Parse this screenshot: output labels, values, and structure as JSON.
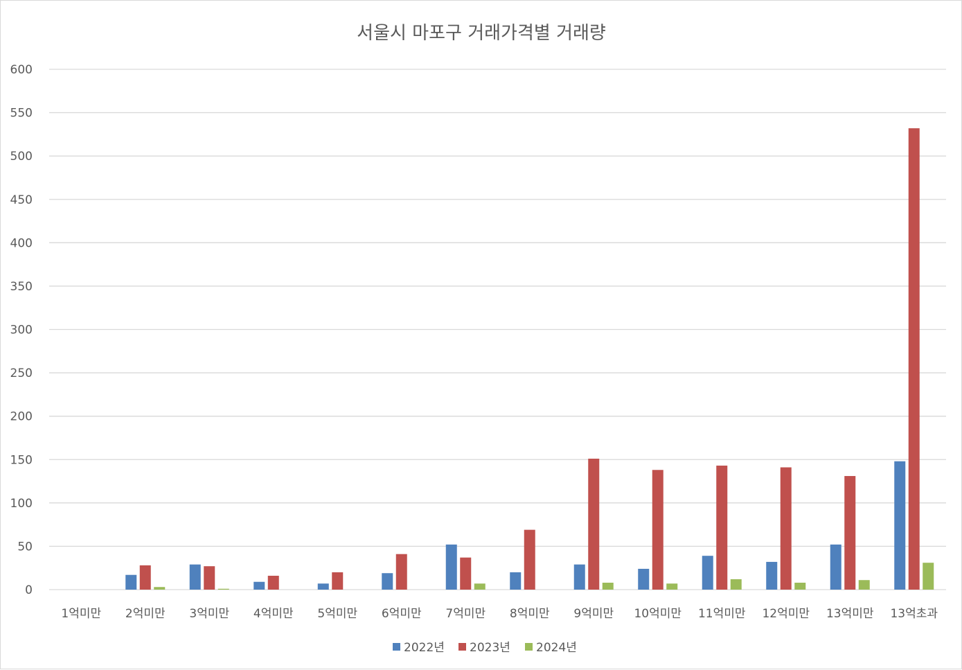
{
  "chart_data": {
    "type": "bar",
    "title": "서울시 마포구 거래가격별 거래량",
    "xlabel": "",
    "ylabel": "",
    "ylim": [
      0,
      600
    ],
    "yticks": [
      0,
      50,
      100,
      150,
      200,
      250,
      300,
      350,
      400,
      450,
      500,
      550,
      600
    ],
    "grid": true,
    "legend_position": "bottom",
    "categories": [
      "1억미만",
      "2억미만",
      "3억미만",
      "4억미만",
      "5억미만",
      "6억미만",
      "7억미만",
      "8억미만",
      "9억미만",
      "10억미만",
      "11억미만",
      "12억미만",
      "13억미만",
      "13억초과"
    ],
    "series": [
      {
        "name": "2022년",
        "color": "#4f81bd",
        "values": [
          0,
          17,
          29,
          9,
          7,
          19,
          52,
          20,
          29,
          24,
          39,
          32,
          52,
          148
        ]
      },
      {
        "name": "2023년",
        "color": "#c0504d",
        "values": [
          0,
          28,
          27,
          16,
          20,
          41,
          37,
          69,
          151,
          138,
          143,
          141,
          131,
          532
        ]
      },
      {
        "name": "2024년",
        "color": "#9bbb59",
        "values": [
          0,
          3,
          1,
          0,
          0,
          0,
          7,
          0,
          8,
          7,
          12,
          8,
          11,
          31
        ]
      }
    ]
  }
}
